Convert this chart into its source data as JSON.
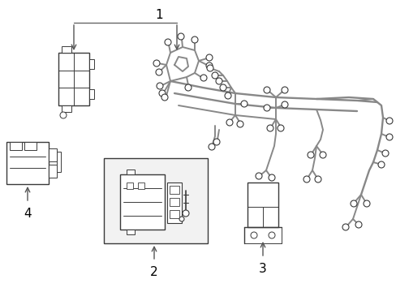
{
  "background_color": "#ffffff",
  "line_color": "#3a3a3a",
  "gray_color": "#888888",
  "figsize": [
    4.89,
    3.6
  ],
  "dpi": 100,
  "label_fontsize": 11,
  "label_color": "#000000"
}
